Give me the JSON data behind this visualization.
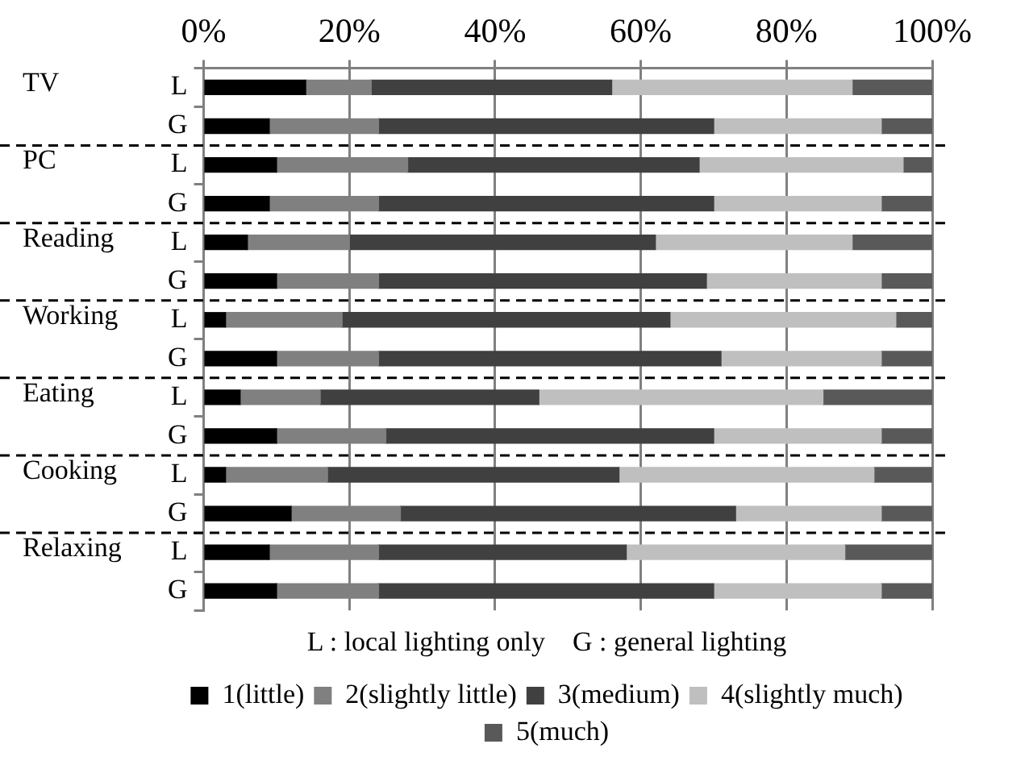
{
  "chart_data": {
    "type": "bar",
    "orientation": "horizontal",
    "stacked": true,
    "categories": [
      "L",
      "G",
      "L",
      "G",
      "L",
      "G",
      "L",
      "G",
      "L",
      "G",
      "L",
      "G",
      "L",
      "G"
    ],
    "series": [
      {
        "name": "1(little)",
        "color": "#000000",
        "values": [
          14,
          9,
          10,
          9,
          6,
          10,
          3,
          10,
          5,
          10,
          3,
          12,
          9,
          10
        ]
      },
      {
        "name": "2(slightly little)",
        "color": "#808080",
        "values": [
          9,
          15,
          18,
          15,
          14,
          14,
          16,
          14,
          11,
          15,
          14,
          15,
          15,
          14
        ]
      },
      {
        "name": "3(medium)",
        "color": "#404040",
        "values": [
          33,
          46,
          40,
          46,
          42,
          45,
          45,
          47,
          30,
          45,
          40,
          46,
          34,
          46
        ]
      },
      {
        "name": "4(slightly much)",
        "color": "#bfbfbf",
        "values": [
          33,
          23,
          28,
          23,
          27,
          24,
          31,
          22,
          39,
          23,
          35,
          20,
          30,
          23
        ]
      },
      {
        "name": "5(much)",
        "color": "#595959",
        "values": [
          11,
          7,
          4,
          7,
          11,
          7,
          5,
          7,
          15,
          7,
          8,
          7,
          12,
          7
        ]
      }
    ],
    "xlim": [
      0,
      100
    ],
    "xticks": [
      {
        "value": 0,
        "label": "0%"
      },
      {
        "value": 20,
        "label": "20%"
      },
      {
        "value": 40,
        "label": "40%"
      },
      {
        "value": 60,
        "label": "60%"
      },
      {
        "value": 80,
        "label": "80%"
      },
      {
        "value": 100,
        "label": "100%"
      }
    ],
    "grid": "x",
    "legend": "bottom",
    "annotations": [
      "TV",
      "PC",
      "Reading",
      "Working",
      "Eating",
      "Cooking",
      "Relaxing",
      "L : local lighting only    G : general lighting"
    ]
  }
}
